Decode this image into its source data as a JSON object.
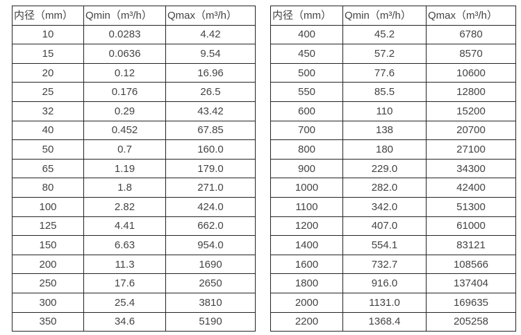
{
  "page": {
    "background_color": "#ffffff",
    "text_color": "#434343",
    "border_color": "#222222"
  },
  "tables": [
    {
      "name": "flow-range-small-diameters",
      "headers": [
        "内径（mm）",
        "Qmin（m³/h）",
        "Qmax（m³/h）"
      ],
      "rows": [
        [
          "10",
          "0.0283",
          "4.42"
        ],
        [
          "15",
          "0.0636",
          "9.54"
        ],
        [
          "20",
          "0.12",
          "16.96"
        ],
        [
          "25",
          "0.176",
          "26.5"
        ],
        [
          "32",
          "0.29",
          "43.42"
        ],
        [
          "40",
          "0.452",
          "67.85"
        ],
        [
          "50",
          "0.7",
          "160.0"
        ],
        [
          "65",
          "1.19",
          "179.0"
        ],
        [
          "80",
          "1.8",
          "271.0"
        ],
        [
          "100",
          "2.82",
          "424.0"
        ],
        [
          "125",
          "4.41",
          "662.0"
        ],
        [
          "150",
          "6.63",
          "954.0"
        ],
        [
          "200",
          "11.3",
          "1690"
        ],
        [
          "250",
          "17.6",
          "2650"
        ],
        [
          "300",
          "25.4",
          "3810"
        ],
        [
          "350",
          "34.6",
          "5190"
        ]
      ]
    },
    {
      "name": "flow-range-large-diameters",
      "headers": [
        "内径（mm）",
        "Qmin（m³/h）",
        "Qmax（m³/h）"
      ],
      "rows": [
        [
          "400",
          "45.2",
          "6780"
        ],
        [
          "450",
          "57.2",
          "8570"
        ],
        [
          "500",
          "77.6",
          "10600"
        ],
        [
          "550",
          "85.5",
          "12800"
        ],
        [
          "600",
          "110",
          "15200"
        ],
        [
          "700",
          "138",
          "20700"
        ],
        [
          "800",
          "180",
          "27100"
        ],
        [
          "900",
          "229.0",
          "34300"
        ],
        [
          "1000",
          "282.0",
          "42400"
        ],
        [
          "1100",
          "342.0",
          "51300"
        ],
        [
          "1200",
          "407.0",
          "61000"
        ],
        [
          "1400",
          "554.1",
          "83121"
        ],
        [
          "1600",
          "732.7",
          "108566"
        ],
        [
          "1800",
          "916.0",
          "137404"
        ],
        [
          "2000",
          "1131.0",
          "169635"
        ],
        [
          "2200",
          "1368.4",
          "205258"
        ]
      ]
    }
  ]
}
